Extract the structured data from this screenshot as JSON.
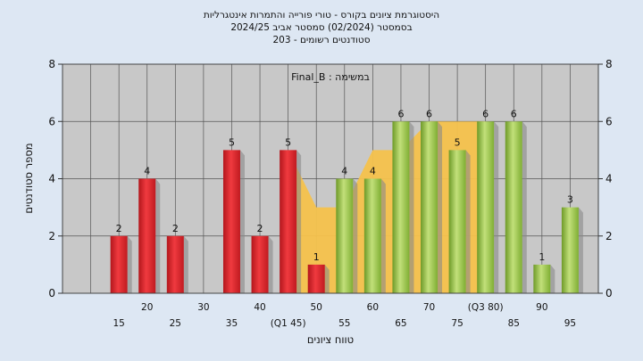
{
  "titles": {
    "line1": "היסטוגרמת ציונים בקורס - טורי פורייה והתמרות אינטגרליות",
    "line2": "בסמסטר  (02/2024)  סמסטר אביב 2024/25",
    "line3": "סטודנטים רשומים - 203"
  },
  "chart_data": {
    "type": "bar",
    "annotation": "Final_B : במשימה",
    "xlabel": "טווח ציונים",
    "ylabel": "מספר סטודנטים",
    "ylim": [
      0,
      8
    ],
    "yticks": [
      0,
      2,
      4,
      6,
      8
    ],
    "grid": true,
    "x_tick_labels": [
      {
        "x": 15,
        "label": "15",
        "row": 1
      },
      {
        "x": 20,
        "label": "20",
        "row": 0
      },
      {
        "x": 25,
        "label": "25",
        "row": 1
      },
      {
        "x": 30,
        "label": "30",
        "row": 0
      },
      {
        "x": 35,
        "label": "35",
        "row": 1
      },
      {
        "x": 40,
        "label": "40",
        "row": 0
      },
      {
        "x": 45,
        "label": "(Q1 45)",
        "row": 1
      },
      {
        "x": 50,
        "label": "50",
        "row": 0
      },
      {
        "x": 55,
        "label": "55",
        "row": 1
      },
      {
        "x": 60,
        "label": "60",
        "row": 0
      },
      {
        "x": 65,
        "label": "65",
        "row": 1
      },
      {
        "x": 70,
        "label": "70",
        "row": 0
      },
      {
        "x": 75,
        "label": "75",
        "row": 1
      },
      {
        "x": 80,
        "label": "(Q3 80)",
        "row": 0
      },
      {
        "x": 85,
        "label": "85",
        "row": 1
      },
      {
        "x": 90,
        "label": "90",
        "row": 0
      },
      {
        "x": 95,
        "label": "95",
        "row": 1
      }
    ],
    "bars": [
      {
        "x": 15,
        "value": 2,
        "color": "red"
      },
      {
        "x": 20,
        "value": 4,
        "color": "red"
      },
      {
        "x": 25,
        "value": 2,
        "color": "red"
      },
      {
        "x": 35,
        "value": 5,
        "color": "red"
      },
      {
        "x": 40,
        "value": 2,
        "color": "red"
      },
      {
        "x": 45,
        "value": 5,
        "color": "red"
      },
      {
        "x": 50,
        "value": 1,
        "color": "red"
      },
      {
        "x": 55,
        "value": 4,
        "color": "green"
      },
      {
        "x": 60,
        "value": 4,
        "color": "green"
      },
      {
        "x": 65,
        "value": 6,
        "color": "green"
      },
      {
        "x": 70,
        "value": 6,
        "color": "green"
      },
      {
        "x": 75,
        "value": 5,
        "color": "green"
      },
      {
        "x": 80,
        "value": 6,
        "color": "green"
      },
      {
        "x": 85,
        "value": 6,
        "color": "green"
      },
      {
        "x": 90,
        "value": 1,
        "color": "green"
      },
      {
        "x": 95,
        "value": 3,
        "color": "green"
      }
    ],
    "iqr_band": {
      "from": 45,
      "to": 80,
      "values": [
        5,
        3,
        3,
        5,
        5,
        6,
        6,
        6
      ],
      "color": "#f5c24c"
    },
    "colors": {
      "red": "#e2232a",
      "green": "#86b43a",
      "grid_bg": "#c8c8c8",
      "page_bg": "#dde7f3"
    }
  }
}
